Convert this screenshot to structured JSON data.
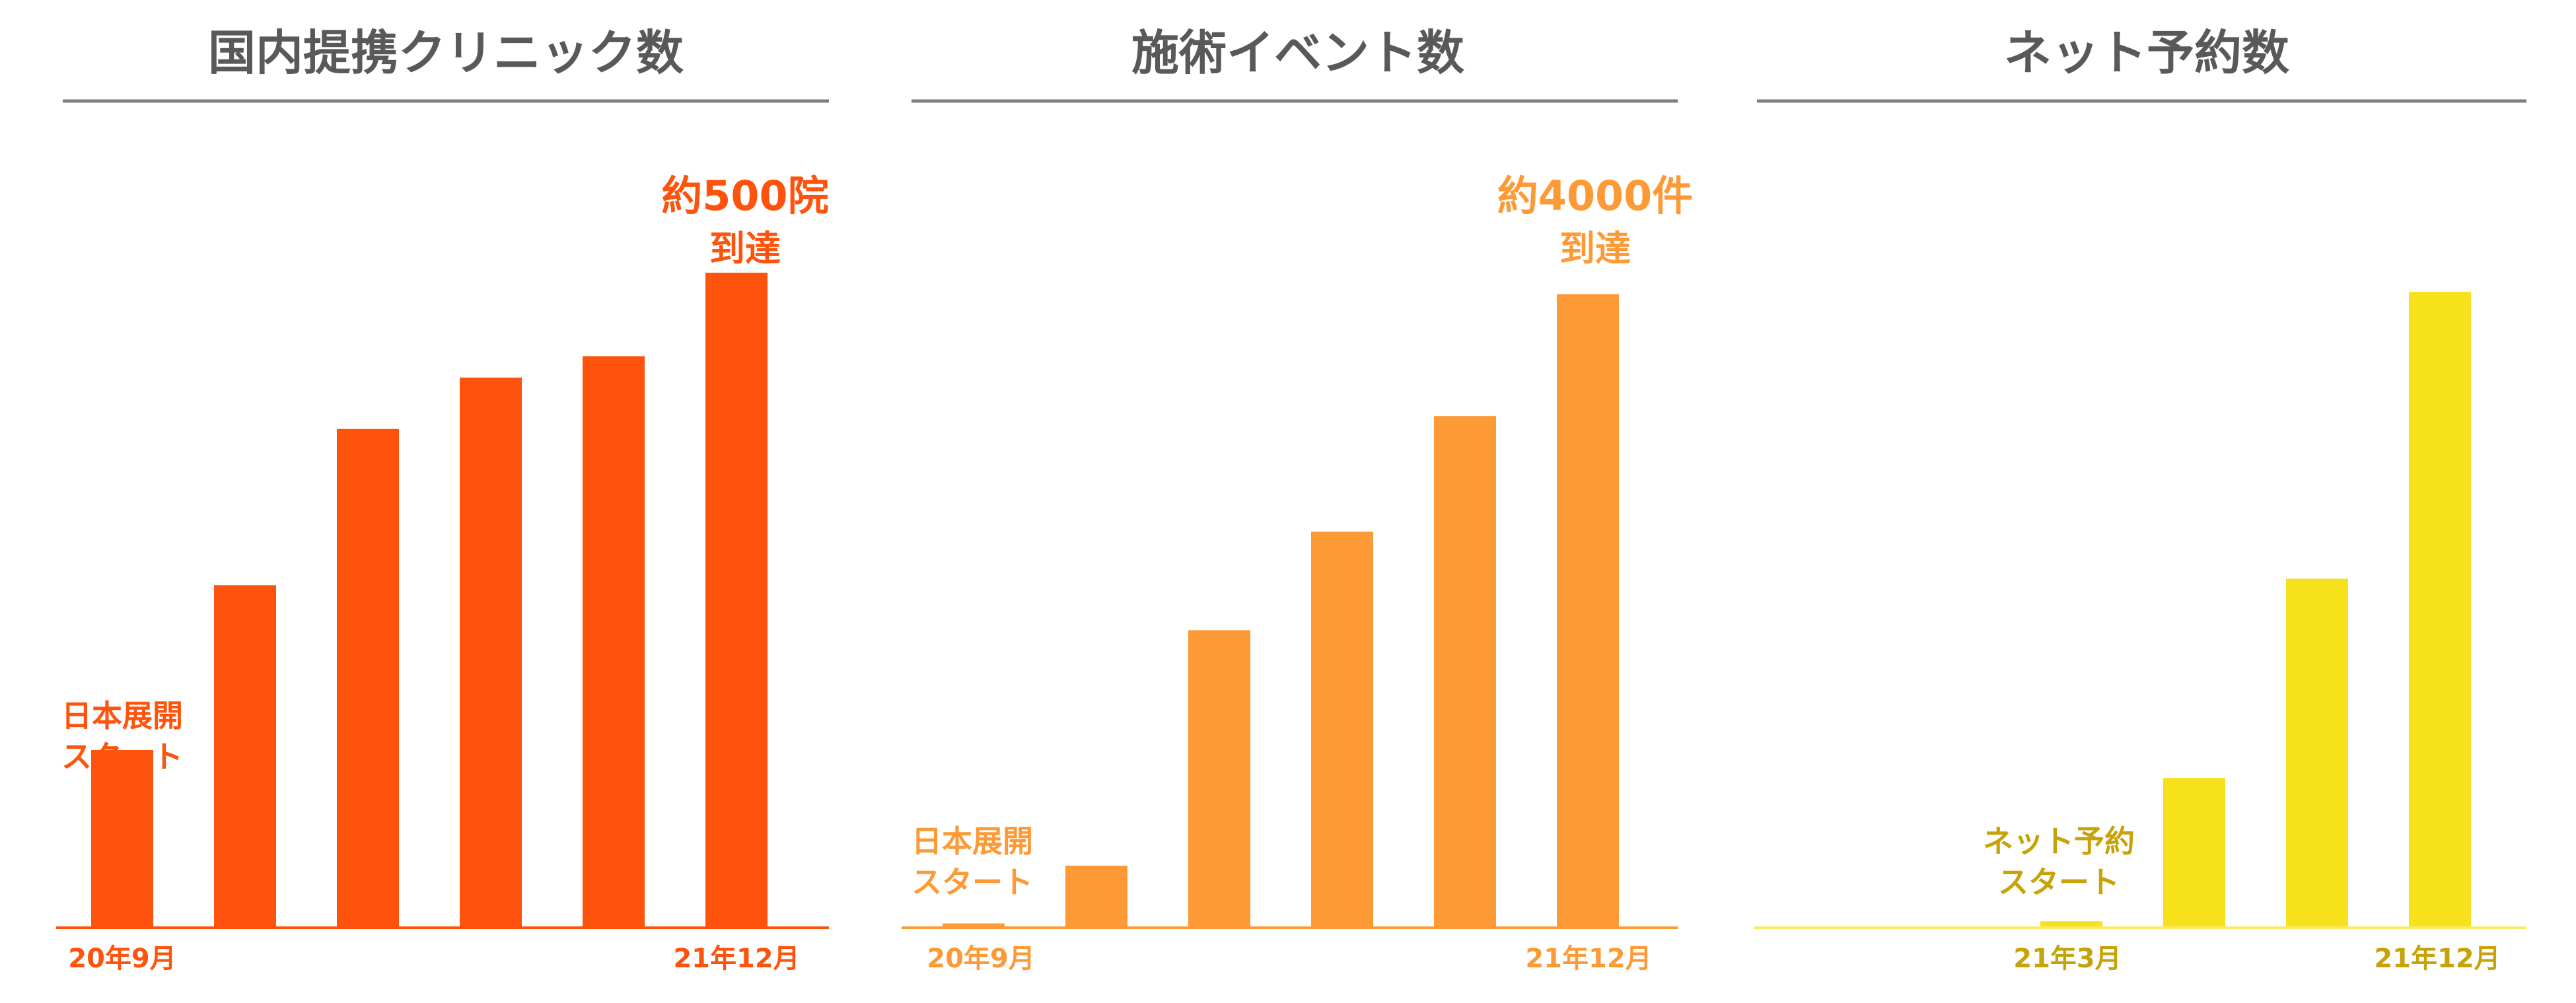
{
  "colors": {
    "title_text": "#595959",
    "rule": "#7f7f7f",
    "clinics": "#fe530c",
    "events": "#fe9a35",
    "events_text": "#fe9a35",
    "booking_bar": "#f7e11a",
    "booking_baseline": "#f9ea6b",
    "booking_text": "#c7a30a"
  },
  "chart_data": [
    {
      "type": "bar",
      "title": "国内提携クリニック数",
      "categories": [
        "20年9月",
        "",
        "",
        "",
        "",
        "21年12月"
      ],
      "values": [
        83,
        160,
        233,
        257,
        267,
        306
      ],
      "ylim": [
        0,
        310
      ],
      "tick_labels": [
        "20年9月",
        "21年12月"
      ],
      "annotations": [
        {
          "lines": [
            "日本展開",
            "スタート"
          ],
          "target": "20年9月"
        },
        {
          "lines": [
            "約500院",
            "到達"
          ],
          "target": "21年12月"
        }
      ],
      "color": "#fe530c"
    },
    {
      "type": "bar",
      "title": "施術イベント数",
      "categories": [
        "20年9月",
        "",
        "",
        "",
        "",
        "21年12月"
      ],
      "values": [
        2,
        29,
        139,
        185,
        239,
        296
      ],
      "ylim": [
        0,
        310
      ],
      "tick_labels": [
        "20年9月",
        "21年12月"
      ],
      "annotations": [
        {
          "lines": [
            "日本展開",
            "スタート"
          ],
          "target": "20年9月"
        },
        {
          "lines": [
            "約4000件",
            "到達"
          ],
          "target": "21年12月"
        }
      ],
      "color": "#fe9a35"
    },
    {
      "type": "bar",
      "title": "ネット予約数",
      "categories": [
        "",
        "",
        "21年3月",
        "",
        "",
        "21年12月"
      ],
      "values": [
        0,
        0,
        3,
        70,
        163,
        297
      ],
      "ylim": [
        0,
        310
      ],
      "tick_labels": [
        "21年3月",
        "21年12月"
      ],
      "annotations": [
        {
          "lines": [
            "ネット予約",
            "スタート"
          ],
          "target": "21年3月"
        }
      ],
      "color": "#f7e11a"
    }
  ]
}
